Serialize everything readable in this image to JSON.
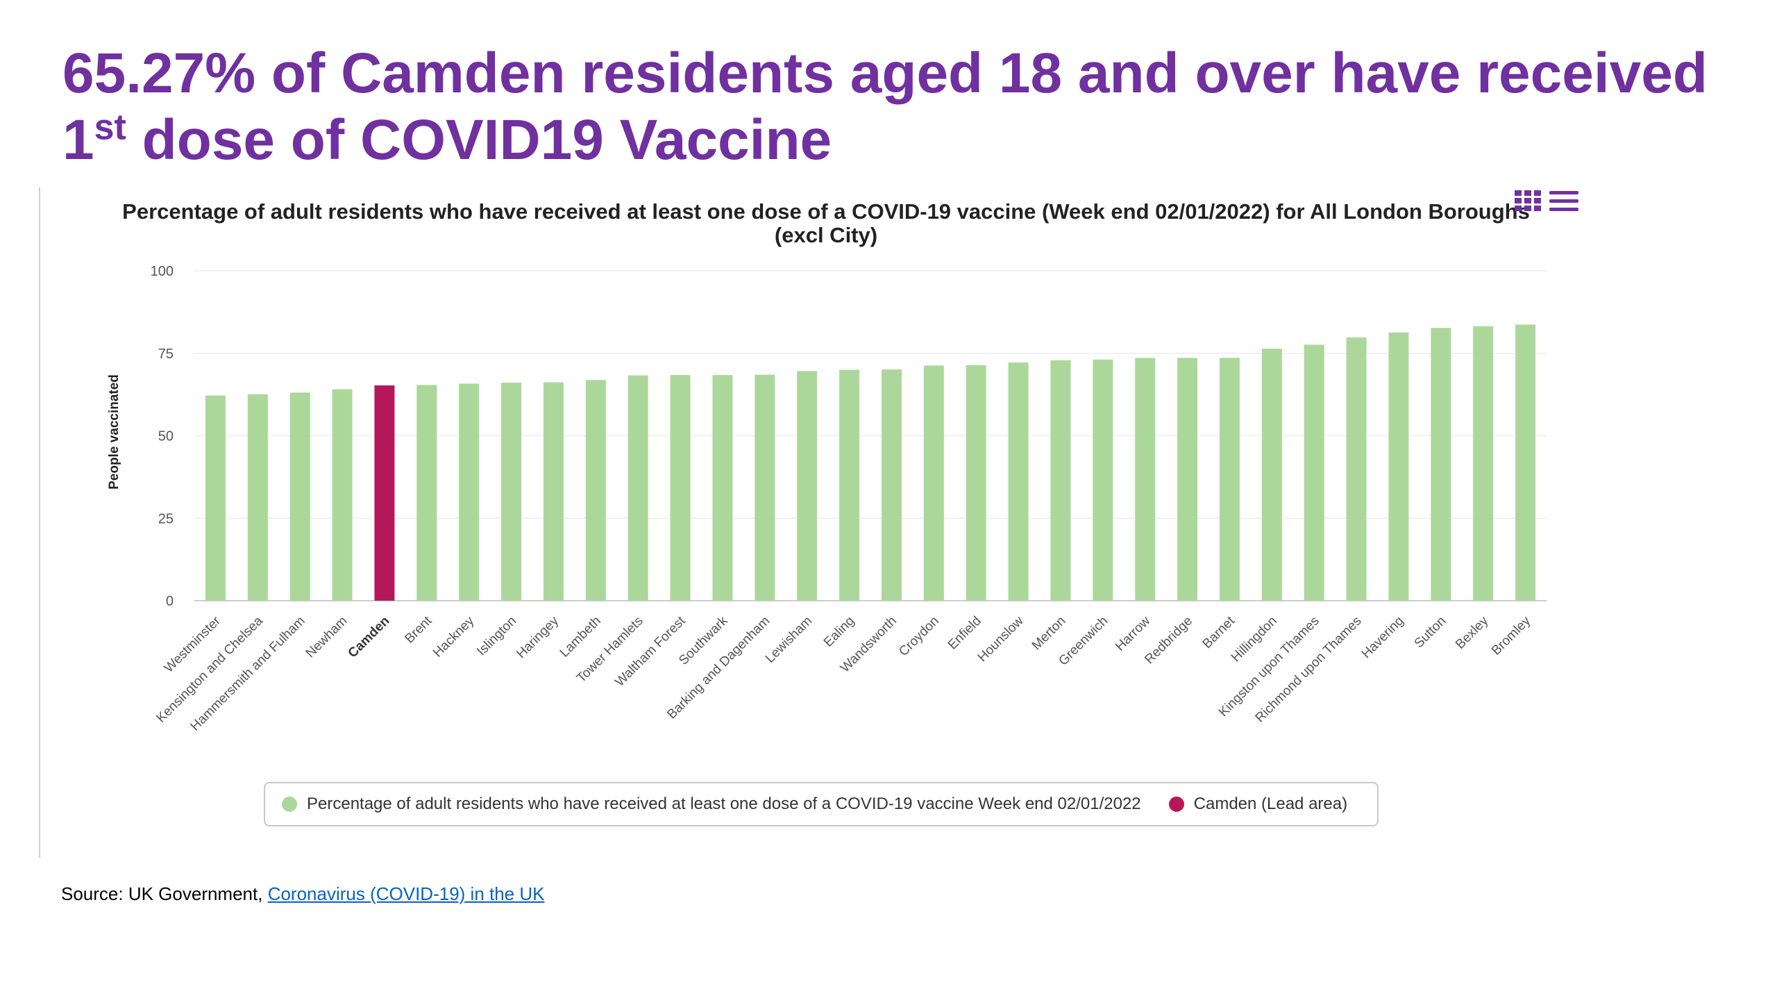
{
  "headline": {
    "text_before": "65.27% of Camden residents aged 18 and over have received 1",
    "superscript": "st",
    "text_after": " dose of COVID19 Vaccine",
    "color": "#7030a0"
  },
  "chart_data": {
    "type": "bar",
    "title": "Percentage of adult residents who have received at least one dose of a COVID-19 vaccine (Week end 02/01/2022) for All London Boroughs (excl City)",
    "ylabel": "People vaccinated",
    "xlabel": "",
    "ylim": [
      0,
      100
    ],
    "yticks": [
      0,
      25,
      50,
      75,
      100
    ],
    "grid": true,
    "legend_position": "bottom",
    "highlight_category": "Camden",
    "categories": [
      "Westminster",
      "Kensington and Chelsea",
      "Hammersmith and Fulham",
      "Newham",
      "Camden",
      "Brent",
      "Hackney",
      "Islington",
      "Haringey",
      "Lambeth",
      "Tower Hamlets",
      "Waltham Forest",
      "Southwark",
      "Barking and Dagenham",
      "Lewisham",
      "Ealing",
      "Wandsworth",
      "Croydon",
      "Enfield",
      "Hounslow",
      "Merton",
      "Greenwich",
      "Harrow",
      "Redbridge",
      "Barnet",
      "Hillingdon",
      "Kingston upon Thames",
      "Richmond upon Thames",
      "Havering",
      "Sutton",
      "Bexley",
      "Bromley"
    ],
    "values": [
      62.2,
      62.6,
      63.1,
      64.1,
      65.27,
      65.4,
      65.8,
      66.1,
      66.2,
      66.9,
      68.3,
      68.4,
      68.4,
      68.5,
      69.6,
      70.0,
      70.1,
      71.3,
      71.4,
      72.2,
      72.9,
      73.1,
      73.6,
      73.6,
      73.6,
      76.4,
      77.6,
      79.8,
      81.3,
      82.7,
      83.2,
      83.7
    ],
    "series": [
      {
        "name": "Percentage of adult residents who have received at least one dose of a COVID-19 vaccine Week end 02/01/2022",
        "color": "#abd89a"
      },
      {
        "name": "Camden (Lead area)",
        "color": "#b5185a"
      }
    ]
  },
  "source": {
    "prefix": "Source: UK Government, ",
    "link_text": "Coronavirus (COVID-19) in the UK"
  },
  "icons": {
    "data_table": "grid-icon",
    "menu": "hamburger-menu-icon"
  }
}
